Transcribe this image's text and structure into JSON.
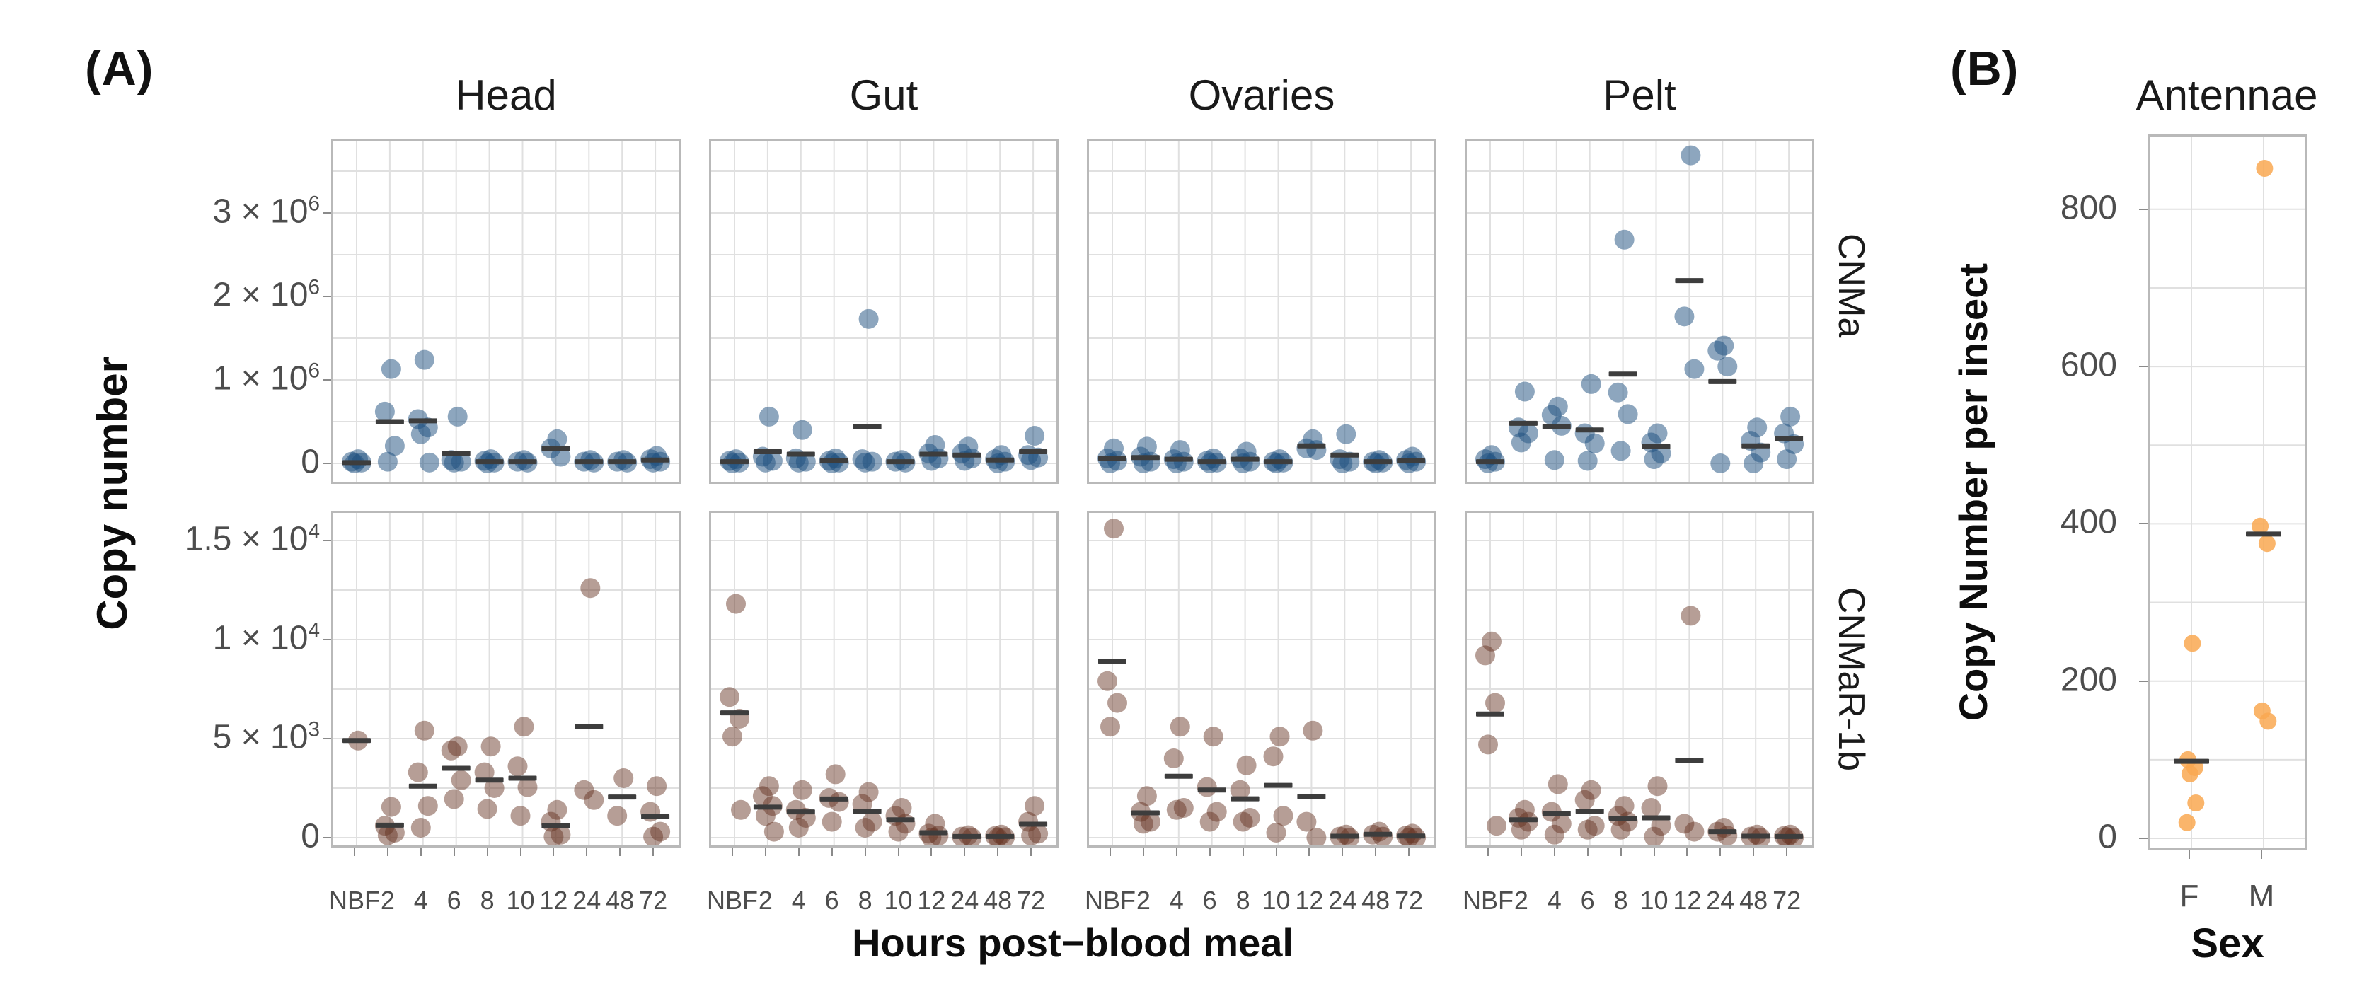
{
  "figure": {
    "panel_a_label": "(A)",
    "panel_b_label": "(B)",
    "colors": {
      "cnma_point": "#1c4d7d",
      "cnmar_point": "#63301f",
      "antennae_point": "#F9A851",
      "mean_bar": "#3d3d3d",
      "grid": "#e0e0e0",
      "panel_border": "#b9b9b9",
      "tick_text": "#4d4d4d",
      "title_text": "#111111"
    }
  },
  "chart_data": [
    {
      "type": "scatter",
      "id": "panel-A",
      "facet_columns": [
        "Head",
        "Gut",
        "Ovaries",
        "Pelt"
      ],
      "facet_rows": [
        "CNMa",
        "CNMaR-1b"
      ],
      "xlabel": "Hours post−blood meal",
      "ylabel": "Copy number",
      "x_categories": [
        "NBF",
        "2",
        "4",
        "6",
        "8",
        "10",
        "12",
        "24",
        "48",
        "72"
      ],
      "legend": "none",
      "grid": "on",
      "summary_bar": "mean",
      "rows": [
        {
          "gene": "CNMa",
          "point_color": "#1c4d7d",
          "point_opacity": 0.5,
          "ylim": [
            -250000,
            3890000
          ],
          "gridline_step": 500000,
          "y_ticks": [
            {
              "value": 3000000,
              "base": "3 × 10",
              "exp": "6"
            },
            {
              "value": 2000000,
              "base": "2 × 10",
              "exp": "6"
            },
            {
              "value": 1000000,
              "base": "1 × 10",
              "exp": "6"
            },
            {
              "value": 0,
              "base": "0",
              "exp": ""
            }
          ],
          "panels": [
            {
              "tissue": "Head",
              "points": [
                [
                  50000,
                  20000,
                  10000,
                  0
                ],
                [
                  1130000,
                  620000,
                  210000,
                  20000
                ],
                [
                  1240000,
                  530000,
                  430000,
                  350000,
                  10000
                ],
                [
                  560000,
                  40000,
                  20000,
                  10000
                ],
                [
                  50000,
                  30000,
                  10000,
                  0
                ],
                [
                  40000,
                  20000,
                  10000
                ],
                [
                  290000,
                  180000,
                  80000
                ],
                [
                  40000,
                  20000,
                  10000
                ],
                [
                  40000,
                  20000,
                  10000
                ],
                [
                  90000,
                  50000,
                  20000,
                  10000
                ]
              ],
              "means": [
                10000,
                500000,
                510000,
                120000,
                20000,
                20000,
                180000,
                20000,
                20000,
                40000
              ]
            },
            {
              "tissue": "Gut",
              "points": [
                [
                  50000,
                  30000,
                  10000,
                  0
                ],
                [
                  560000,
                  80000,
                  30000,
                  10000
                ],
                [
                  400000,
                  60000,
                  20000,
                  10000
                ],
                [
                  60000,
                  30000,
                  10000,
                  0
                ],
                [
                  1730000,
                  50000,
                  20000,
                  10000
                ],
                [
                  40000,
                  20000,
                  10000
                ],
                [
                  220000,
                  120000,
                  60000,
                  30000
                ],
                [
                  200000,
                  120000,
                  60000,
                  30000
                ],
                [
                  100000,
                  50000,
                  20000,
                  0
                ],
                [
                  330000,
                  100000,
                  70000,
                  40000
                ]
              ],
              "means": [
                20000,
                140000,
                110000,
                30000,
                440000,
                20000,
                110000,
                100000,
                40000,
                140000
              ]
            },
            {
              "tissue": "Ovaries",
              "points": [
                [
                  180000,
                  60000,
                  30000,
                  0
                ],
                [
                  200000,
                  80000,
                  20000,
                  0
                ],
                [
                  160000,
                  50000,
                  20000,
                  0
                ],
                [
                  60000,
                  30000,
                  10000,
                  0
                ],
                [
                  140000,
                  60000,
                  20000,
                  0
                ],
                [
                  50000,
                  20000,
                  10000,
                  0
                ],
                [
                  290000,
                  180000,
                  160000
                ],
                [
                  350000,
                  50000,
                  20000,
                  0
                ],
                [
                  40000,
                  20000,
                  10000,
                  0
                ],
                [
                  80000,
                  40000,
                  20000,
                  0
                ]
              ],
              "means": [
                60000,
                70000,
                50000,
                20000,
                50000,
                20000,
                210000,
                100000,
                20000,
                30000
              ]
            },
            {
              "tissue": "Pelt",
              "points": [
                [
                  100000,
                  50000,
                  20000,
                  0
                ],
                [
                  860000,
                  430000,
                  360000,
                  250000
                ],
                [
                  680000,
                  580000,
                  450000,
                  40000
                ],
                [
                  950000,
                  360000,
                  240000,
                  30000
                ],
                [
                  2680000,
                  850000,
                  590000,
                  150000
                ],
                [
                  360000,
                  250000,
                  120000,
                  50000
                ],
                [
                  3690000,
                  1760000,
                  1130000
                ],
                [
                  1410000,
                  1350000,
                  1160000,
                  0
                ],
                [
                  430000,
                  270000,
                  130000,
                  0
                ],
                [
                  560000,
                  360000,
                  230000,
                  50000
                ]
              ],
              "means": [
                20000,
                480000,
                440000,
                400000,
                1070000,
                200000,
                2190000,
                980000,
                210000,
                300000
              ]
            }
          ]
        },
        {
          "gene": "CNMaR-1b",
          "point_color": "#63301f",
          "point_opacity": 0.47,
          "ylim": [
            -500,
            16500
          ],
          "gridline_step": 2500,
          "y_ticks": [
            {
              "value": 15000,
              "base": "1.5 × 10",
              "exp": "4"
            },
            {
              "value": 10000,
              "base": "1 × 10",
              "exp": "4"
            },
            {
              "value": 5000,
              "base": "5 × 10",
              "exp": "3"
            },
            {
              "value": 0,
              "base": "0",
              "exp": ""
            }
          ],
          "panels": [
            {
              "tissue": "Head",
              "points": [
                [
                  4900
                ],
                [
                  1550,
                  600,
                  250,
                  120
                ],
                [
                  5400,
                  3300,
                  1600,
                  500
                ],
                [
                  4600,
                  4400,
                  2900,
                  1950
                ],
                [
                  4600,
                  3300,
                  2500,
                  1450
                ],
                [
                  5600,
                  3600,
                  2550,
                  1100
                ],
                [
                  1400,
                  800,
                  150,
                  50
                ],
                [
                  12600,
                  2400,
                  1900
                ],
                [
                  3000,
                  1100
                ],
                [
                  2600,
                  1300,
                  300,
                  50
                ]
              ],
              "means": [
                4900,
                630,
                2600,
                3500,
                2900,
                3000,
                600,
                5600,
                2050,
                1060
              ]
            },
            {
              "tissue": "Gut",
              "points": [
                [
                  11800,
                  7100,
                  6000,
                  5100,
                  1400
                ],
                [
                  2600,
                  2100,
                  1600,
                  1100,
                  300
                ],
                [
                  2400,
                  1400,
                  1000,
                  500
                ],
                [
                  3200,
                  2000,
                  1800,
                  800
                ],
                [
                  2300,
                  1700,
                  800,
                  500
                ],
                [
                  1500,
                  1100,
                  700,
                  300
                ],
                [
                  700,
                  200,
                  100,
                  0
                ],
                [
                  120,
                  50,
                  0
                ],
                [
                  150,
                  80,
                  20,
                  0
                ],
                [
                  1600,
                  800,
                  200,
                  100
                ]
              ],
              "means": [
                6300,
                1540,
                1300,
                1950,
                1330,
                900,
                250,
                60,
                60,
                680
              ]
            },
            {
              "tissue": "Ovaries",
              "points": [
                [
                  15600,
                  7900,
                  6800,
                  5600
                ],
                [
                  2100,
                  1300,
                  800,
                  700
                ],
                [
                  5600,
                  4000,
                  1500,
                  1400
                ],
                [
                  5100,
                  2550,
                  1300,
                  800
                ],
                [
                  3650,
                  2400,
                  1000,
                  800
                ],
                [
                  5100,
                  4100,
                  1100,
                  250
                ],
                [
                  5400,
                  800,
                  0
                ],
                [
                  150,
                  50,
                  0
                ],
                [
                  300,
                  150,
                  50
                ],
                [
                  200,
                  100,
                  0,
                  0
                ]
              ],
              "means": [
                8900,
                1250,
                3100,
                2400,
                1960,
                2640,
                2070,
                70,
                170,
                80
              ]
            },
            {
              "tissue": "Pelt",
              "points": [
                [
                  9900,
                  9200,
                  6800,
                  4700,
                  600
                ],
                [
                  1400,
                  1000,
                  800,
                  400
                ],
                [
                  2700,
                  1300,
                  700,
                  150
                ],
                [
                  2400,
                  1900,
                  600,
                  400
                ],
                [
                  1600,
                  1100,
                  800,
                  400
                ],
                [
                  2600,
                  1500,
                  600,
                  50
                ],
                [
                  11200,
                  700,
                  300
                ],
                [
                  500,
                  300,
                  100
                ],
                [
                  150,
                  50,
                  0
                ],
                [
                  150,
                  80,
                  0,
                  0
                ]
              ],
              "means": [
                6240,
                900,
                1210,
                1330,
                980,
                1000,
                3900,
                300,
                70,
                60
              ]
            }
          ]
        }
      ]
    },
    {
      "type": "scatter",
      "id": "panel-B",
      "title": "Antennae",
      "xlabel": "Sex",
      "ylabel": "Copy Number per insect",
      "x_categories": [
        "F",
        "M"
      ],
      "ylim": [
        -20,
        895
      ],
      "gridline_step": 100,
      "point_color": "#F9A851",
      "point_opacity": 0.85,
      "y_ticks": [
        {
          "value": 800,
          "base": "800",
          "exp": ""
        },
        {
          "value": 600,
          "base": "600",
          "exp": ""
        },
        {
          "value": 400,
          "base": "400",
          "exp": ""
        },
        {
          "value": 200,
          "base": "200",
          "exp": ""
        },
        {
          "value": 0,
          "base": "0",
          "exp": ""
        }
      ],
      "points": [
        [
          248,
          100,
          90,
          82,
          45,
          20
        ],
        [
          852,
          397,
          375,
          162,
          149
        ]
      ],
      "means": [
        98,
        387
      ]
    }
  ]
}
